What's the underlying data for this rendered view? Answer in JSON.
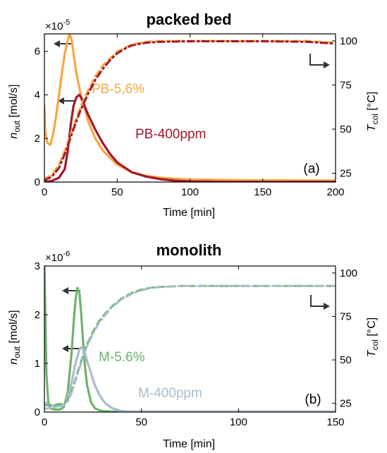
{
  "chart_data": [
    {
      "type": "line",
      "title": "packed bed",
      "panel_label": "(a)",
      "xlabel": "Time [min]",
      "ylabel_left": "n_out [mol/s]",
      "ylabel_left_base": "n",
      "ylabel_left_sub": "out",
      "ylabel_left_unit": " [mol/s]",
      "ylabel_right": "T_col [°C]",
      "ylabel_right_base": "T",
      "ylabel_right_sub": "col",
      "ylabel_right_unit": " [°C]",
      "y_scale_note_base": "×10",
      "y_scale_note_exp": "-5",
      "xlim": [
        0,
        200
      ],
      "ylim_left": [
        0,
        6.8
      ],
      "ylim_right": [
        20,
        104
      ],
      "xticks": [
        0,
        50,
        100,
        150,
        200
      ],
      "yticks_left": [
        0,
        2,
        4,
        6
      ],
      "yticks_right": [
        25,
        50,
        75,
        100
      ],
      "grid": false,
      "annotations": [
        {
          "text": "PB-5,6%",
          "color": "#f5a742"
        },
        {
          "text": "PB-400ppm",
          "color": "#a3172a"
        }
      ],
      "series": [
        {
          "name": "PB-5,6%",
          "axis": "left",
          "style": "solid",
          "color": "#f5a742",
          "x": [
            0,
            0.5,
            2,
            4,
            6,
            8,
            10,
            12,
            14,
            16,
            17,
            18,
            19,
            20,
            22,
            25,
            30,
            35,
            40,
            50,
            60,
            70,
            80,
            90,
            100,
            120,
            140,
            160,
            180,
            200
          ],
          "y": [
            3.5,
            2.4,
            1.8,
            1.7,
            2.2,
            3.0,
            4.0,
            5.0,
            5.9,
            6.5,
            6.75,
            6.7,
            6.4,
            5.9,
            5.0,
            4.0,
            2.8,
            2.0,
            1.45,
            0.8,
            0.45,
            0.28,
            0.2,
            0.15,
            0.12,
            0.1,
            0.08,
            0.08,
            0.07,
            0.07
          ]
        },
        {
          "name": "PB-400ppm",
          "axis": "left",
          "style": "solid",
          "color": "#a3172a",
          "x": [
            0,
            5,
            10,
            14,
            16,
            18,
            20,
            22,
            24,
            25,
            27,
            30,
            35,
            40,
            45,
            50,
            60,
            70,
            80,
            90,
            100,
            110,
            120,
            140,
            160,
            180,
            200
          ],
          "y": [
            0,
            0.05,
            0.2,
            0.6,
            1.4,
            2.6,
            3.5,
            3.9,
            4.0,
            3.9,
            3.6,
            3.1,
            2.4,
            1.8,
            1.3,
            0.9,
            0.45,
            0.25,
            0.13,
            0.06,
            0.03,
            0.02,
            0.01,
            0.01,
            0.01,
            0.01,
            0.01
          ]
        },
        {
          "name": "PB-5,6%",
          "axis": "right",
          "style": "dashed",
          "color": "#f5a742",
          "x": [
            0,
            5,
            10,
            15,
            20,
            25,
            30,
            35,
            40,
            45,
            50,
            55,
            60,
            70,
            80,
            100,
            120,
            150,
            180,
            200
          ],
          "y": [
            22,
            24,
            30,
            40,
            52,
            63,
            72,
            80,
            86,
            90,
            94,
            96,
            98,
            99.5,
            100,
            100,
            100,
            100,
            100,
            99
          ]
        },
        {
          "name": "PB-400ppm",
          "axis": "right",
          "style": "dashdot",
          "color": "#a3172a",
          "x": [
            0,
            5,
            10,
            15,
            20,
            25,
            30,
            35,
            40,
            45,
            50,
            55,
            60,
            70,
            80,
            100,
            120,
            150,
            180,
            200
          ],
          "y": [
            21,
            23,
            28,
            38,
            50,
            61,
            70,
            78,
            84,
            89,
            93,
            95.5,
            97.5,
            99,
            99.5,
            99.8,
            99.8,
            99.8,
            99.5,
            98.5
          ]
        }
      ]
    },
    {
      "type": "line",
      "title": "monolith",
      "panel_label": "(b)",
      "xlabel": "Time [min]",
      "ylabel_left": "n_out [mol/s]",
      "ylabel_left_base": "n",
      "ylabel_left_sub": "out",
      "ylabel_left_unit": " [mol/s]",
      "ylabel_right": "T_col [°C]",
      "ylabel_right_base": "T",
      "ylabel_right_sub": "col",
      "ylabel_right_unit": " [°C]",
      "y_scale_note_base": "×10",
      "y_scale_note_exp": "-6",
      "xlim": [
        0,
        150
      ],
      "ylim_left": [
        0,
        3
      ],
      "ylim_right": [
        20,
        104
      ],
      "xticks": [
        0,
        50,
        100,
        150
      ],
      "yticks_left": [
        0,
        1,
        2,
        3
      ],
      "yticks_right": [
        25,
        50,
        75,
        100
      ],
      "grid": false,
      "annotations": [
        {
          "text": "M-5.6%",
          "color": "#6db36d"
        },
        {
          "text": "M-400ppm",
          "color": "#a9bccb"
        }
      ],
      "series": [
        {
          "name": "M-5.6%",
          "axis": "left",
          "style": "solid",
          "color": "#6db36d",
          "x": [
            0,
            0.5,
            1,
            2,
            3,
            5,
            8,
            10,
            12,
            14,
            15,
            16,
            17,
            18,
            19,
            20,
            21,
            22,
            24,
            26,
            28,
            30,
            35,
            40,
            60,
            80,
            100,
            120,
            150
          ],
          "y": [
            3.0,
            2.0,
            0.8,
            0.2,
            0.08,
            0.05,
            0.05,
            0.1,
            0.4,
            1.2,
            1.8,
            2.3,
            2.55,
            2.45,
            2.0,
            1.4,
            0.9,
            0.55,
            0.2,
            0.08,
            0.04,
            0.02,
            0.01,
            0.01,
            0.01,
            0.01,
            0.01,
            0.01,
            0.01
          ]
        },
        {
          "name": "M-400ppm",
          "axis": "left",
          "style": "solid",
          "color": "#a9bccb",
          "x": [
            0,
            2,
            5,
            8,
            10,
            12,
            14,
            16,
            18,
            19,
            20,
            21,
            22,
            24,
            26,
            28,
            30,
            32,
            35,
            38,
            40,
            45,
            50,
            60,
            80,
            100,
            120,
            150
          ],
          "y": [
            0.2,
            0.15,
            0.12,
            0.12,
            0.15,
            0.3,
            0.6,
            1.0,
            1.28,
            1.33,
            1.3,
            1.2,
            1.05,
            0.8,
            0.55,
            0.38,
            0.25,
            0.16,
            0.08,
            0.04,
            0.02,
            0.01,
            0.01,
            0.01,
            0.01,
            0.01,
            0.01,
            0.01
          ]
        },
        {
          "name": "M-5.6%",
          "axis": "right",
          "style": "dashed",
          "color": "#6db36d",
          "x": [
            0,
            5,
            10,
            12,
            14,
            16,
            18,
            20,
            22,
            25,
            28,
            30,
            35,
            40,
            45,
            50,
            55,
            60,
            70,
            80,
            100,
            120,
            150
          ],
          "y": [
            24,
            24,
            25,
            27,
            32,
            39,
            46,
            53,
            59,
            66,
            72,
            75,
            81,
            85.5,
            88.5,
            90.5,
            91.5,
            92,
            92.5,
            92.5,
            92.5,
            92.5,
            92.5
          ]
        },
        {
          "name": "M-400ppm",
          "axis": "right",
          "style": "dashdot",
          "color": "#a9bccb",
          "x": [
            0,
            5,
            10,
            12,
            14,
            16,
            18,
            20,
            22,
            25,
            28,
            30,
            35,
            40,
            45,
            50,
            55,
            60,
            70,
            80,
            100,
            120,
            150
          ],
          "y": [
            22,
            22.5,
            24,
            26,
            31,
            38,
            45,
            52,
            58,
            65,
            71,
            74,
            80.5,
            85,
            88,
            90,
            91.5,
            92,
            92.5,
            92.5,
            92.5,
            92.5,
            92.5
          ]
        }
      ]
    }
  ]
}
